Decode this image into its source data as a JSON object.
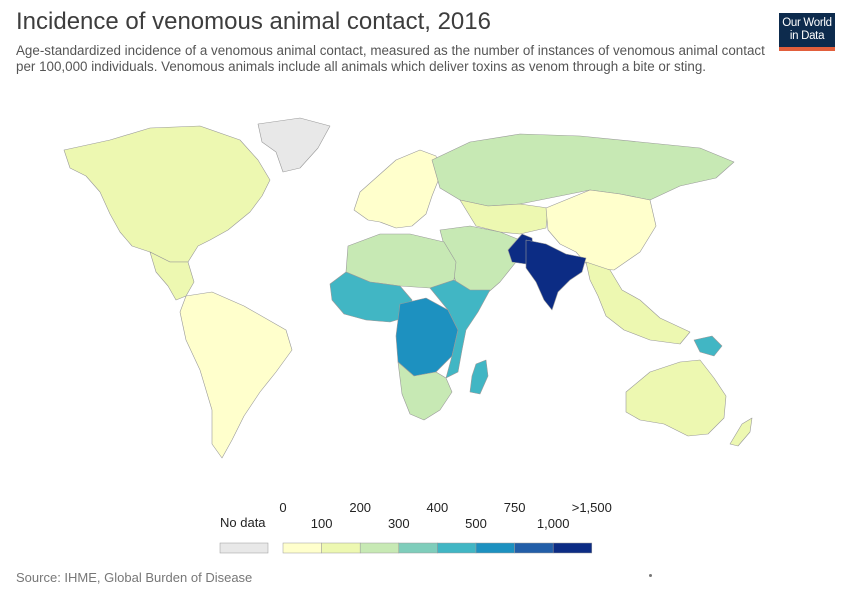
{
  "header": {
    "title": "Incidence of venomous animal contact, 2016",
    "subtitle": "Age-standardized incidence of a venomous animal contact, measured as the number of instances of venomous animal contact per 100,000 individuals. Venomous animals include all animals which deliver toxins as venom through a bite or sting."
  },
  "logo": {
    "line1": "Our World",
    "line2": "in Data"
  },
  "legend": {
    "nodata_label": "No data",
    "nodata_color": "#e8e8e8",
    "top_ticks": [
      "0",
      "200",
      "400",
      "750",
      ">1,500"
    ],
    "bottom_ticks": [
      "100",
      "300",
      "500",
      "1,000"
    ],
    "bins": [
      {
        "range": "0–100",
        "color": "#ffffcc"
      },
      {
        "range": "100–200",
        "color": "#edf8b1"
      },
      {
        "range": "200–300",
        "color": "#c7e9b4"
      },
      {
        "range": "300–400",
        "color": "#7fcdbb"
      },
      {
        "range": "400–500",
        "color": "#41b6c4"
      },
      {
        "range": "500–750",
        "color": "#1d91c0"
      },
      {
        "range": "750–1,000",
        "color": "#225ea8"
      },
      {
        "range": "1,000–1,500+",
        "color": "#0c2c84"
      }
    ]
  },
  "regions": [
    {
      "name": "North America",
      "color": "#edf8b1"
    },
    {
      "name": "Greenland",
      "color": "#e8e8e8"
    },
    {
      "name": "Central America",
      "color": "#edf8b1"
    },
    {
      "name": "South America",
      "color": "#ffffcc"
    },
    {
      "name": "Europe",
      "color": "#ffffcc"
    },
    {
      "name": "Russia",
      "color": "#c7e9b4"
    },
    {
      "name": "Central Asia",
      "color": "#edf8b1"
    },
    {
      "name": "China",
      "color": "#ffffcc"
    },
    {
      "name": "Middle East",
      "color": "#c7e9b4"
    },
    {
      "name": "Pakistan",
      "color": "#0c2c84"
    },
    {
      "name": "India",
      "color": "#0c2c84"
    },
    {
      "name": "Southeast Asia",
      "color": "#edf8b1"
    },
    {
      "name": "North Africa",
      "color": "#c7e9b4"
    },
    {
      "name": "West Africa",
      "color": "#41b6c4"
    },
    {
      "name": "Central Africa",
      "color": "#1d91c0"
    },
    {
      "name": "East Africa",
      "color": "#41b6c4"
    },
    {
      "name": "Southern Africa",
      "color": "#c7e9b4"
    },
    {
      "name": "Madagascar",
      "color": "#41b6c4"
    },
    {
      "name": "Papua New Guinea",
      "color": "#41b6c4"
    },
    {
      "name": "Australia",
      "color": "#edf8b1"
    },
    {
      "name": "New Zealand",
      "color": "#edf8b1"
    }
  ],
  "footer": {
    "source": "Source: IHME, Global Burden of Disease"
  }
}
